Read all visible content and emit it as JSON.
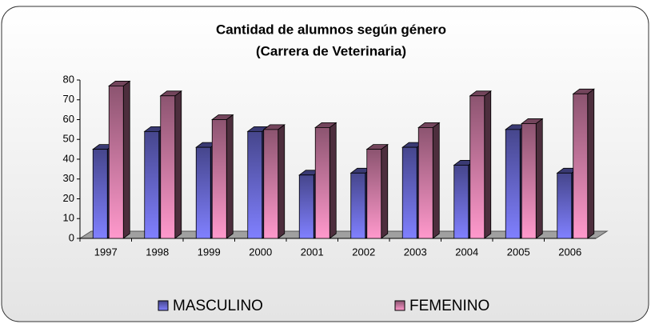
{
  "chart_data": {
    "type": "bar3d",
    "title": "Cantidad de alumnos según género",
    "subtitle": "(Carrera de Veterinaria)",
    "categories": [
      "1997",
      "1998",
      "1999",
      "2000",
      "2001",
      "2002",
      "2003",
      "2004",
      "2005",
      "2006"
    ],
    "series": [
      {
        "name": "MASCULINO",
        "color": "#8080ff",
        "values": [
          45,
          54,
          46,
          54,
          32,
          33,
          46,
          37,
          55,
          33
        ]
      },
      {
        "name": "FEMENINO",
        "color": "#ff99cc",
        "values": [
          77,
          72,
          60,
          55,
          56,
          45,
          56,
          72,
          58,
          73
        ]
      }
    ],
    "ylim": [
      0,
      80
    ],
    "yticks": [
      0,
      10,
      20,
      30,
      40,
      50,
      60,
      70,
      80
    ],
    "grid": false
  }
}
